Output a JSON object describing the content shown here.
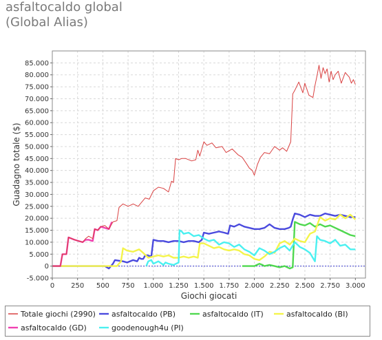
{
  "header": {
    "title": "asfaltocaldo global",
    "subtitle": "(Global Alias)"
  },
  "chart_data": {
    "type": "line",
    "xlabel": "Giochi giocati",
    "ylabel": "Guadagno totale  ($)",
    "xlim": [
      0,
      3100
    ],
    "ylim": [
      -5000,
      90000
    ],
    "x_ticks": [
      0,
      250,
      500,
      750,
      1000,
      1250,
      1500,
      1750,
      2000,
      2250,
      2500,
      2750,
      3000
    ],
    "x_tick_labels": [
      "0",
      "250",
      "500",
      "750",
      "1.000",
      "1.250",
      "1.500",
      "1.750",
      "2.000",
      "2.250",
      "2.500",
      "2.750",
      "3.000"
    ],
    "y_ticks": [
      -5000,
      0,
      5000,
      10000,
      15000,
      20000,
      25000,
      30000,
      35000,
      40000,
      45000,
      50000,
      55000,
      60000,
      65000,
      70000,
      75000,
      80000,
      85000
    ],
    "y_tick_labels": [
      "-5.000",
      "0",
      "5.000",
      "10.000",
      "15.000",
      "20.000",
      "25.000",
      "30.000",
      "35.000",
      "40.000",
      "45.000",
      "50.000",
      "55.000",
      "60.000",
      "65.000",
      "70.000",
      "75.000",
      "80.000",
      "85.000"
    ],
    "grid": true,
    "legend_position": "bottom",
    "series": [
      {
        "name": "Totale giochi  (2990)",
        "color": "#d94040",
        "stroke_width": 1,
        "x": [
          0,
          80,
          100,
          140,
          160,
          220,
          300,
          330,
          360,
          400,
          420,
          450,
          480,
          520,
          560,
          600,
          640,
          660,
          700,
          750,
          800,
          850,
          920,
          960,
          1000,
          1050,
          1100,
          1150,
          1180,
          1200,
          1220,
          1250,
          1280,
          1320,
          1380,
          1420,
          1440,
          1460,
          1500,
          1530,
          1580,
          1620,
          1680,
          1720,
          1780,
          1840,
          1880,
          1920,
          1950,
          1980,
          2000,
          2030,
          2060,
          2100,
          2150,
          2200,
          2250,
          2280,
          2320,
          2360,
          2380,
          2400,
          2440,
          2480,
          2500,
          2540,
          2580,
          2600,
          2620,
          2640,
          2660,
          2680,
          2700,
          2720,
          2740,
          2760,
          2780,
          2800,
          2830,
          2860,
          2900,
          2940,
          2960,
          2980,
          3000
        ],
        "y": [
          0,
          0,
          5000,
          5000,
          12000,
          11000,
          10000,
          11500,
          12500,
          11500,
          15500,
          15000,
          16500,
          17000,
          15500,
          18500,
          19000,
          24500,
          26000,
          25000,
          26000,
          25000,
          28500,
          28000,
          31500,
          33000,
          32500,
          31000,
          35500,
          35000,
          45000,
          44500,
          45000,
          45000,
          44000,
          44500,
          48500,
          46000,
          52000,
          50500,
          51500,
          49500,
          50000,
          47500,
          49000,
          46500,
          45500,
          43000,
          41000,
          40000,
          38000,
          42500,
          45500,
          47500,
          47000,
          50000,
          48500,
          49500,
          48000,
          52000,
          72000,
          73500,
          77000,
          72500,
          76500,
          71500,
          70500,
          75500,
          79500,
          84000,
          78500,
          83000,
          80500,
          82500,
          77000,
          81500,
          78000,
          80000,
          81500,
          76500,
          81000,
          79000,
          76500,
          78000,
          76000
        ]
      },
      {
        "name": "asfaltocaldo (PB)",
        "color": "#4a4ade",
        "stroke_width": 2.4,
        "x": [
          0,
          200,
          400,
          520,
          560,
          600,
          620,
          700,
          740,
          800,
          840,
          860,
          880,
          900,
          920,
          940,
          980,
          1000,
          1050,
          1100,
          1150,
          1200,
          1250,
          1300,
          1350,
          1400,
          1450,
          1480,
          1500,
          1550,
          1600,
          1650,
          1700,
          1740,
          1760,
          1800,
          1850,
          1900,
          1950,
          2000,
          2050,
          2100,
          2150,
          2200,
          2250,
          2300,
          2340,
          2360,
          2380,
          2400,
          2450,
          2500,
          2550,
          2600,
          2650,
          2700,
          2750,
          2800,
          2850,
          2900,
          2950,
          3000
        ],
        "y": [
          0,
          0,
          0,
          0,
          -1000,
          1000,
          2500,
          2000,
          1500,
          2500,
          2000,
          3500,
          3000,
          3000,
          4500,
          4500,
          4000,
          11000,
          10500,
          10500,
          10000,
          10500,
          10500,
          10000,
          10500,
          10500,
          10000,
          11000,
          14000,
          13500,
          14000,
          14500,
          14000,
          13500,
          17000,
          16500,
          17500,
          16500,
          16000,
          15500,
          15500,
          16000,
          17500,
          16000,
          15500,
          15500,
          16000,
          16500,
          19500,
          22000,
          21500,
          20500,
          21500,
          21000,
          21000,
          22000,
          21500,
          21000,
          21500,
          21000,
          20500,
          20500
        ]
      },
      {
        "name": "asfaltocaldo (IT)",
        "color": "#4fd84f",
        "stroke_width": 2.4,
        "x": [
          1880,
          2000,
          2050,
          2080,
          2100,
          2150,
          2200,
          2250,
          2300,
          2350,
          2380,
          2400,
          2450,
          2500,
          2550,
          2600,
          2650,
          2700,
          2750,
          2800,
          2850,
          2900,
          2950,
          3000
        ],
        "y": [
          0,
          0,
          1000,
          500,
          0,
          500,
          0,
          -500,
          0,
          -1000,
          -500,
          18500,
          17500,
          17000,
          18000,
          16500,
          17500,
          16500,
          17000,
          16000,
          15000,
          14000,
          13000,
          12500
        ]
      },
      {
        "name": "asfaltocaldo (BI)",
        "color": "#f4f44a",
        "stroke_width": 2.4,
        "x": [
          0,
          400,
          640,
          680,
          700,
          740,
          800,
          860,
          900,
          950,
          1000,
          1050,
          1100,
          1150,
          1200,
          1250,
          1300,
          1350,
          1400,
          1440,
          1460,
          1500,
          1550,
          1600,
          1650,
          1700,
          1750,
          1800,
          1850,
          1900,
          1950,
          2000,
          2050,
          2100,
          2150,
          2200,
          2250,
          2300,
          2350,
          2400,
          2450,
          2500,
          2550,
          2600,
          2650,
          2700,
          2750,
          2800,
          2850,
          2900,
          2950,
          3000
        ],
        "y": [
          0,
          0,
          0,
          2000,
          7500,
          6500,
          6000,
          7000,
          5500,
          3500,
          4000,
          4500,
          4000,
          4500,
          3500,
          3500,
          4000,
          3500,
          4000,
          3500,
          9500,
          9500,
          8500,
          7500,
          8000,
          7000,
          6500,
          7000,
          6500,
          5000,
          4500,
          3000,
          2500,
          4000,
          6000,
          5500,
          9500,
          10500,
          9000,
          11500,
          10500,
          10000,
          13500,
          14500,
          20500,
          19000,
          20000,
          19500,
          21500,
          20000,
          21500,
          19500
        ]
      },
      {
        "name": "asfaltocaldo (GD)",
        "color": "#f040b0",
        "stroke_width": 2.4,
        "x": [
          0,
          80,
          100,
          140,
          160,
          220,
          300,
          330,
          360,
          400,
          420,
          450,
          480,
          520,
          560,
          590
        ],
        "y": [
          0,
          0,
          5000,
          5000,
          12000,
          11000,
          10000,
          11000,
          11000,
          10500,
          15500,
          15000,
          16500,
          16000,
          15500,
          18500
        ]
      },
      {
        "name": "goodenough4u (PI)",
        "color": "#4af0f0",
        "stroke_width": 2.4,
        "x": [
          930,
          950,
          980,
          1000,
          1050,
          1100,
          1120,
          1150,
          1200,
          1250,
          1260,
          1280,
          1300,
          1350,
          1400,
          1450,
          1500,
          1550,
          1600,
          1650,
          1700,
          1750,
          1800,
          1850,
          1900,
          1950,
          2000,
          2050,
          2100,
          2150,
          2200,
          2250,
          2300,
          2350,
          2400,
          2450,
          2500,
          2550,
          2600,
          2620,
          2650,
          2700,
          2750,
          2800,
          2850,
          2900,
          2950,
          3000
        ],
        "y": [
          0,
          2000,
          2500,
          1000,
          2000,
          500,
          1500,
          1000,
          500,
          1500,
          15000,
          14500,
          13500,
          14000,
          12500,
          13000,
          11500,
          10500,
          11000,
          9000,
          10000,
          9500,
          8000,
          9000,
          7000,
          6000,
          4500,
          7500,
          6500,
          5000,
          6000,
          7500,
          8500,
          6500,
          10000,
          8000,
          7000,
          5500,
          2000,
          12500,
          11000,
          10500,
          9500,
          11000,
          8500,
          9000,
          7000,
          7000
        ]
      }
    ],
    "reference_line": {
      "y": 0,
      "color": "#3a3ad0"
    }
  }
}
